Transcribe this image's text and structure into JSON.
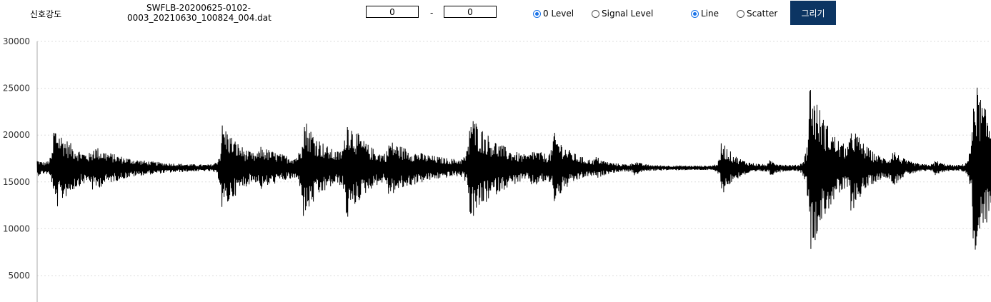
{
  "toolbar": {
    "title": "신호강도",
    "filename_line1": "SWFLB-20200625-0102-",
    "filename_line2": "0003_20210630_100824_004.dat",
    "range_start": "0",
    "range_separator": "-",
    "range_end": "0",
    "level_options": [
      {
        "label": "0 Level",
        "checked": true
      },
      {
        "label": "Signal Level",
        "checked": false
      }
    ],
    "mode_options": [
      {
        "label": "Line",
        "checked": true
      },
      {
        "label": "Scatter",
        "checked": false
      }
    ],
    "draw_label": "그리기"
  },
  "colors": {
    "button_bg": "#0c3563",
    "radio_accent": "#1a73e8",
    "line": "#000000",
    "grid": "#dddddd"
  },
  "chart_data": {
    "type": "line",
    "title": "",
    "xlabel": "",
    "ylabel": "",
    "ylim": [
      3000,
      30000
    ],
    "yticks": [
      30000,
      25000,
      20000,
      15000,
      10000,
      5000
    ],
    "grid": "horizontal dotted",
    "baseline": 16500,
    "x_range": [
      0,
      1
    ],
    "bursts": [
      {
        "x": 0.0,
        "amp": 700,
        "spread": 0.01
      },
      {
        "x": 0.019,
        "amp": 4300,
        "spread": 0.028
      },
      {
        "x": 0.06,
        "amp": 1200,
        "spread": 0.05
      },
      {
        "x": 0.195,
        "amp": 4500,
        "spread": 0.025
      },
      {
        "x": 0.235,
        "amp": 1200,
        "spread": 0.06
      },
      {
        "x": 0.28,
        "amp": 4600,
        "spread": 0.024
      },
      {
        "x": 0.325,
        "amp": 4400,
        "spread": 0.025
      },
      {
        "x": 0.37,
        "amp": 1800,
        "spread": 0.065
      },
      {
        "x": 0.455,
        "amp": 5000,
        "spread": 0.034
      },
      {
        "x": 0.52,
        "amp": 900,
        "spread": 0.03
      },
      {
        "x": 0.543,
        "amp": 2600,
        "spread": 0.018
      },
      {
        "x": 0.587,
        "amp": 500,
        "spread": 0.008
      },
      {
        "x": 0.627,
        "amp": 500,
        "spread": 0.006
      },
      {
        "x": 0.719,
        "amp": 2600,
        "spread": 0.015
      },
      {
        "x": 0.77,
        "amp": 500,
        "spread": 0.01
      },
      {
        "x": 0.811,
        "amp": 9000,
        "spread": 0.025
      },
      {
        "x": 0.855,
        "amp": 2800,
        "spread": 0.018
      },
      {
        "x": 0.898,
        "amp": 1300,
        "spread": 0.01
      },
      {
        "x": 0.943,
        "amp": 500,
        "spread": 0.008
      },
      {
        "x": 0.983,
        "amp": 9500,
        "spread": 0.025
      }
    ]
  }
}
